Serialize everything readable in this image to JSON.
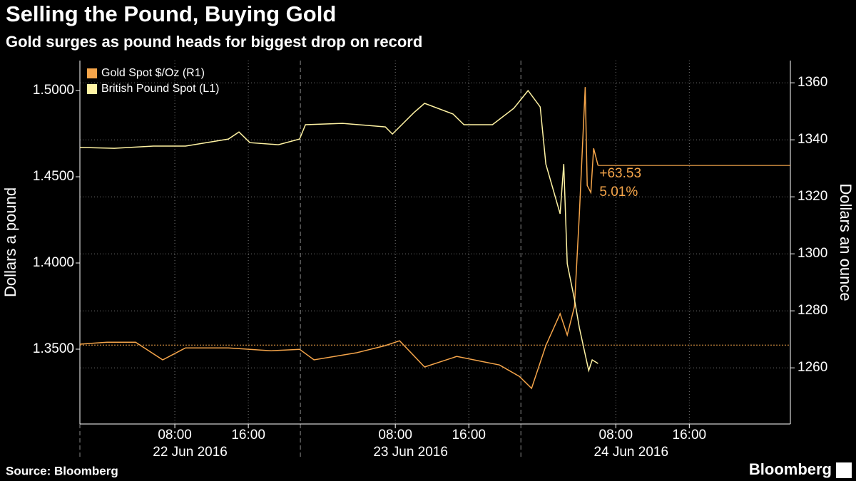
{
  "chart_data": {
    "type": "line",
    "title": "Selling the Pound, Buying Gold",
    "subtitle": "Gold surges as pound heads for biggest drop on record",
    "source": "Source: Bloomberg",
    "brand": "Bloomberg",
    "y_label": "Dollars a pound",
    "y2_label": "Dollars an ounce",
    "legend": "top-left",
    "grid": true,
    "annotations": [
      "+63.53",
      "5.01%"
    ],
    "xlim": [
      "2016-06-21 21:40",
      "2016-06-25 03:00"
    ],
    "xticks": [
      {
        "value": "2016-06-22 08:00",
        "label": "08:00"
      },
      {
        "value": "2016-06-22 16:00",
        "label": "16:00"
      },
      {
        "value": "2016-06-23 08:00",
        "label": "08:00"
      },
      {
        "value": "2016-06-23 16:00",
        "label": "16:00"
      },
      {
        "value": "2016-06-24 08:00",
        "label": "08:00"
      },
      {
        "value": "2016-06-24 16:00",
        "label": "16:00"
      }
    ],
    "date_ticks": [
      {
        "value": "2016-06-21 21:40",
        "label": "22 Jun 2016"
      },
      {
        "value": "2016-06-22 21:40",
        "label": "23 Jun 2016"
      },
      {
        "value": "2016-06-23 21:40",
        "label": "24 Jun 2016"
      }
    ],
    "ylim": [
      1.3066,
      1.5174
    ],
    "yticks": [
      {
        "value": 1.35,
        "label": "1.3500"
      },
      {
        "value": 1.4,
        "label": "1.4000"
      },
      {
        "value": 1.45,
        "label": "1.4500"
      },
      {
        "value": 1.5,
        "label": "1.5000"
      }
    ],
    "y2lim": [
      1240.3,
      1367.8
    ],
    "y2ticks": [
      1260,
      1280,
      1300,
      1320,
      1340,
      1360
    ],
    "series": [
      {
        "name": "Gold Spot $/Oz  (R1)",
        "color": "#f5a54a",
        "axis": "y2",
        "reference_value": 1268,
        "x": [
          "2016-06-21 21:40",
          "2016-06-22 00:37",
          "2016-06-22 03:44",
          "2016-06-22 06:41",
          "2016-06-22 09:10",
          "2016-06-22 13:50",
          "2016-06-22 18:29",
          "2016-06-22 21:35",
          "2016-06-22 23:09",
          "2016-06-23 03:48",
          "2016-06-23 06:55",
          "2016-06-23 08:28",
          "2016-06-23 11:11",
          "2016-06-23 14:41",
          "2016-06-23 19:20",
          "2016-06-23 21:30",
          "2016-06-23 22:50",
          "2016-06-24 00:23",
          "2016-06-24 01:56",
          "2016-06-24 02:43",
          "2016-06-24 03:30",
          "2016-06-24 04:02",
          "2016-06-24 04:40",
          "2016-06-24 04:53",
          "2016-06-24 05:17",
          "2016-06-24 05:35",
          "2016-06-24 06:04"
        ],
        "values": [
          1268.3,
          1269.0,
          1269.0,
          1262.8,
          1267.0,
          1267.0,
          1266.0,
          1266.5,
          1262.8,
          1265.3,
          1267.8,
          1269.5,
          1260.3,
          1264.0,
          1261.0,
          1257.0,
          1252.8,
          1267.8,
          1279.0,
          1271.5,
          1281.5,
          1314.0,
          1358.5,
          1324.0,
          1321.5,
          1337.0,
          1331.0
        ]
      },
      {
        "name": "British Pound Spot (L1)",
        "color": "#fff3a3",
        "x": [
          "2016-06-21 21:40",
          "2016-06-22 01:24",
          "2016-06-22 05:40",
          "2016-06-22 09:10",
          "2016-06-22 13:50",
          "2016-06-22 14:59",
          "2016-06-22 16:10",
          "2016-06-22 19:16",
          "2016-06-22 21:35",
          "2016-06-22 22:13",
          "2016-06-23 02:15",
          "2016-06-23 06:55",
          "2016-06-23 07:41",
          "2016-06-23 10:01",
          "2016-06-23 11:11",
          "2016-06-23 14:17",
          "2016-06-23 15:28",
          "2016-06-23 18:34",
          "2016-06-23 20:54",
          "2016-06-23 22:27",
          "2016-06-23 23:46",
          "2016-06-24 00:23",
          "2016-06-24 01:56",
          "2016-06-24 02:20",
          "2016-06-24 02:43",
          "2016-06-24 03:30",
          "2016-06-24 04:02",
          "2016-06-24 05:03",
          "2016-06-24 05:26",
          "2016-06-24 06:04"
        ],
        "values": [
          1.467,
          1.4665,
          1.4678,
          1.4678,
          1.4719,
          1.476,
          1.4698,
          1.4686,
          1.4719,
          1.4802,
          1.481,
          1.4789,
          1.4748,
          1.4872,
          1.4926,
          1.4864,
          1.4802,
          1.4802,
          1.4897,
          1.5,
          1.4905,
          1.4574,
          1.4285,
          1.4574,
          1.3996,
          1.3789,
          1.3624,
          1.3376,
          1.3438,
          1.3417
        ]
      }
    ]
  }
}
